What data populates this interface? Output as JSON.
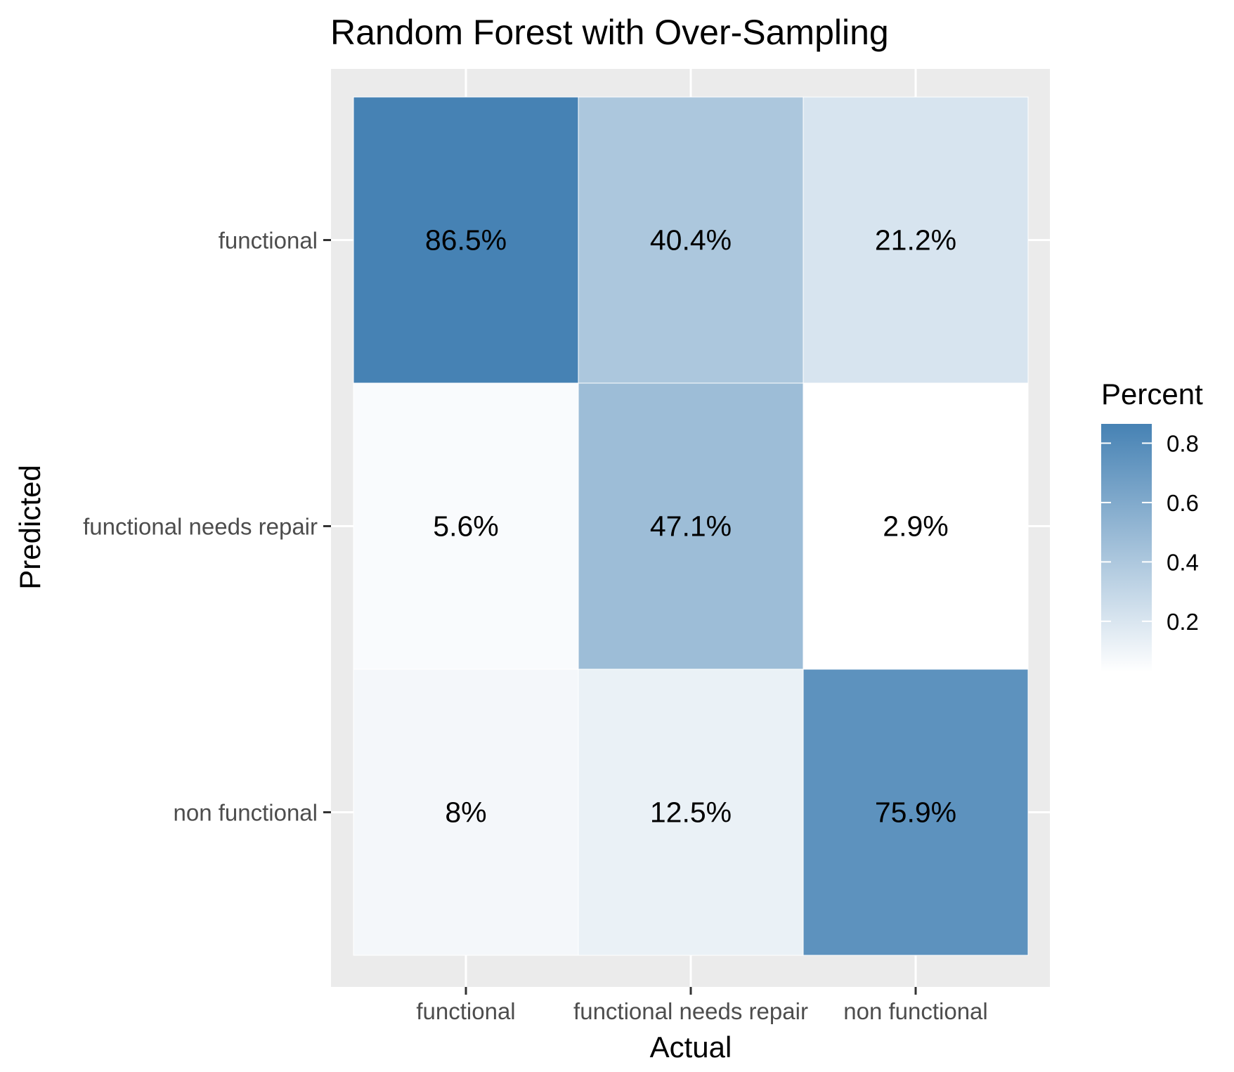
{
  "chart_data": {
    "type": "heatmap",
    "title": "Random Forest with Over-Sampling",
    "xlabel": "Actual",
    "ylabel": "Predicted",
    "x_categories": [
      "functional",
      "functional needs repair",
      "non functional"
    ],
    "y_categories": [
      "functional",
      "functional needs repair",
      "non functional"
    ],
    "cells": [
      {
        "actual": "functional",
        "predicted": "functional",
        "value": 0.865,
        "label": "86.5%"
      },
      {
        "actual": "functional needs repair",
        "predicted": "functional",
        "value": 0.404,
        "label": "40.4%"
      },
      {
        "actual": "non functional",
        "predicted": "functional",
        "value": 0.212,
        "label": "21.2%"
      },
      {
        "actual": "functional",
        "predicted": "functional needs repair",
        "value": 0.056,
        "label": "5.6%"
      },
      {
        "actual": "functional needs repair",
        "predicted": "functional needs repair",
        "value": 0.471,
        "label": "47.1%"
      },
      {
        "actual": "non functional",
        "predicted": "functional needs repair",
        "value": 0.029,
        "label": "2.9%"
      },
      {
        "actual": "functional",
        "predicted": "non functional",
        "value": 0.08,
        "label": "8%"
      },
      {
        "actual": "functional needs repair",
        "predicted": "non functional",
        "value": 0.125,
        "label": "12.5%"
      },
      {
        "actual": "non functional",
        "predicted": "non functional",
        "value": 0.759,
        "label": "75.9%"
      }
    ],
    "legend": {
      "title": "Percent",
      "position": "right",
      "ticks": [
        0.2,
        0.4,
        0.6,
        0.8
      ],
      "tick_labels": [
        "0.2",
        "0.4",
        "0.6",
        "0.8"
      ],
      "range": [
        0.029,
        0.865
      ]
    },
    "colors": {
      "low": "#ffffff",
      "high": "#4682b4",
      "panel_background": "#ebebeb",
      "grid": "#ffffff"
    },
    "grid": true
  }
}
